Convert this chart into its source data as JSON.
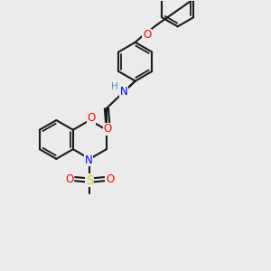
{
  "bg_color": "#ebebeb",
  "bond_color": "#1a1a1a",
  "bond_width": 1.5,
  "atom_colors": {
    "N": "#0000ff",
    "O": "#ff0000",
    "S": "#cccc00",
    "H": "#5a9a9a",
    "C": "#1a1a1a"
  },
  "font_size": 8.5,
  "figsize": [
    3.0,
    3.0
  ],
  "dpi": 100
}
